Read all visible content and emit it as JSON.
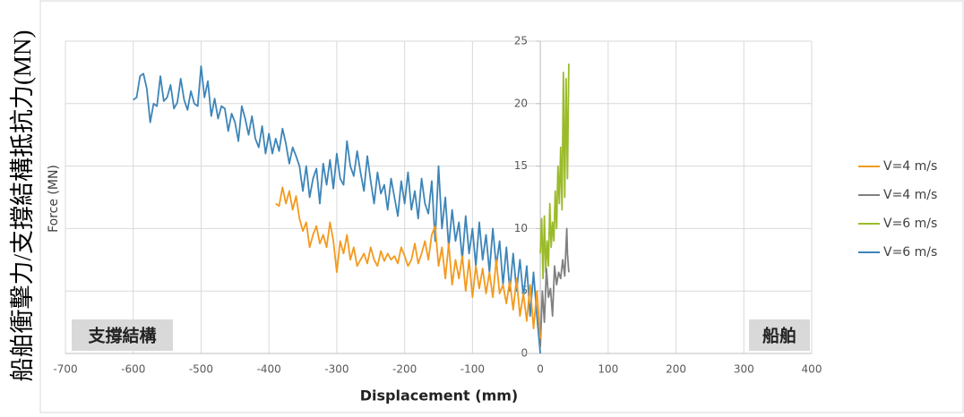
{
  "chart_data": {
    "type": "line",
    "title": "船舶衝擊力/支撐結構抵抗力(MN)",
    "y_label": "Force (MN)",
    "x_label": "Displacement (mm)",
    "region_labels": [
      "支撐結構",
      "船舶"
    ],
    "xlim": [
      -700,
      400
    ],
    "xticks": [
      -700,
      -600,
      -500,
      -400,
      -300,
      -200,
      -100,
      0,
      100,
      200,
      300,
      400
    ],
    "ylim": [
      0,
      25
    ],
    "yticks": [
      0,
      5,
      10,
      15,
      20,
      25
    ],
    "grid": true,
    "legend": "right",
    "series": [
      {
        "name": "V=4 m/s",
        "color": "#f39a1e",
        "x": [
          -390,
          -385,
          -380,
          -375,
          -370,
          -365,
          -360,
          -355,
          -350,
          -345,
          -340,
          -335,
          -330,
          -325,
          -320,
          -315,
          -310,
          -305,
          -300,
          -295,
          -290,
          -285,
          -280,
          -275,
          -270,
          -265,
          -260,
          -255,
          -250,
          -245,
          -240,
          -235,
          -230,
          -225,
          -220,
          -215,
          -210,
          -205,
          -200,
          -195,
          -190,
          -185,
          -180,
          -175,
          -170,
          -165,
          -160,
          -155,
          -150,
          -145,
          -140,
          -135,
          -130,
          -125,
          -120,
          -115,
          -110,
          -105,
          -100,
          -95,
          -90,
          -85,
          -80,
          -75,
          -70,
          -65,
          -60,
          -55,
          -50,
          -45,
          -40,
          -35,
          -30,
          -25,
          -20,
          -15,
          -10,
          -5,
          0
        ],
        "values": [
          12.0,
          11.8,
          13.3,
          12.0,
          13.0,
          11.5,
          12.6,
          10.8,
          9.8,
          10.5,
          8.5,
          9.5,
          10.2,
          8.8,
          9.5,
          8.5,
          10.5,
          9.0,
          6.5,
          9.0,
          8.0,
          9.5,
          7.5,
          8.5,
          7.0,
          7.5,
          8.0,
          7.2,
          8.5,
          7.5,
          7.0,
          8.2,
          7.4,
          8.0,
          7.5,
          7.8,
          7.2,
          8.5,
          7.8,
          7.0,
          7.5,
          8.8,
          7.2,
          8.0,
          9.0,
          7.5,
          9.5,
          10.2,
          7.0,
          8.5,
          6.0,
          8.8,
          5.5,
          7.5,
          6.0,
          7.8,
          5.0,
          7.5,
          4.5,
          7.0,
          5.2,
          6.8,
          4.8,
          6.5,
          4.5,
          7.5,
          4.8,
          5.5,
          4.0,
          5.8,
          3.5,
          6.0,
          3.0,
          4.8,
          2.6,
          5.5,
          2.0,
          5.0,
          1.2
        ]
      },
      {
        "name": "V=4 m/s",
        "color": "#808080",
        "x": [
          0,
          3,
          6,
          9,
          12,
          15,
          18,
          21,
          24,
          27,
          30,
          33,
          36,
          39,
          40,
          42
        ],
        "values": [
          0.5,
          5.0,
          2.5,
          6.8,
          4.5,
          5.2,
          3.0,
          7.0,
          5.5,
          6.5,
          6.0,
          7.5,
          6.2,
          10.0,
          8.0,
          6.5
        ]
      },
      {
        "name": "V=6 m/s",
        "color": "#9bbb2a",
        "x": [
          0,
          2,
          4,
          6,
          8,
          10,
          12,
          14,
          16,
          18,
          20,
          22,
          24,
          26,
          28,
          30,
          32,
          34,
          36,
          38,
          40,
          42
        ],
        "values": [
          8.0,
          10.8,
          6.0,
          11.0,
          6.5,
          9.0,
          7.0,
          12.0,
          8.5,
          10.5,
          9.0,
          13.0,
          10.0,
          15.0,
          12.0,
          16.5,
          11.5,
          22.5,
          12.5,
          22.0,
          14.0,
          23.2
        ]
      },
      {
        "name": "V=6 m/s",
        "color": "#3d85b8",
        "x": [
          -600,
          -595,
          -590,
          -585,
          -580,
          -575,
          -570,
          -565,
          -560,
          -555,
          -550,
          -545,
          -540,
          -535,
          -530,
          -525,
          -520,
          -515,
          -510,
          -505,
          -500,
          -495,
          -490,
          -485,
          -480,
          -475,
          -470,
          -465,
          -460,
          -455,
          -450,
          -445,
          -440,
          -435,
          -430,
          -425,
          -420,
          -415,
          -410,
          -405,
          -400,
          -395,
          -390,
          -385,
          -380,
          -375,
          -370,
          -365,
          -360,
          -355,
          -350,
          -345,
          -340,
          -335,
          -330,
          -325,
          -320,
          -315,
          -310,
          -305,
          -300,
          -295,
          -290,
          -285,
          -280,
          -275,
          -270,
          -265,
          -260,
          -255,
          -250,
          -245,
          -240,
          -235,
          -230,
          -225,
          -220,
          -215,
          -210,
          -205,
          -200,
          -195,
          -190,
          -185,
          -180,
          -175,
          -170,
          -165,
          -160,
          -155,
          -150,
          -145,
          -140,
          -135,
          -130,
          -125,
          -120,
          -115,
          -110,
          -105,
          -100,
          -95,
          -90,
          -85,
          -80,
          -75,
          -70,
          -65,
          -60,
          -55,
          -50,
          -45,
          -40,
          -35,
          -30,
          -25,
          -20,
          -15,
          -10,
          -5,
          0
        ],
        "values": [
          20.3,
          20.5,
          22.2,
          22.4,
          21.2,
          18.5,
          20.0,
          19.8,
          22.2,
          20.2,
          20.5,
          21.5,
          19.6,
          20.1,
          22.0,
          20.3,
          19.5,
          21.0,
          20.0,
          19.8,
          23.0,
          20.5,
          21.8,
          19.0,
          20.4,
          18.8,
          19.8,
          19.6,
          17.8,
          19.2,
          18.5,
          17.0,
          19.8,
          18.8,
          17.5,
          19.0,
          17.2,
          16.5,
          18.2,
          16.0,
          17.6,
          16.0,
          17.2,
          16.2,
          18.0,
          16.8,
          15.2,
          16.5,
          15.8,
          15.0,
          13.0,
          15.0,
          12.5,
          14.0,
          14.8,
          12.0,
          15.2,
          13.5,
          15.5,
          13.2,
          16.0,
          14.0,
          13.5,
          17.0,
          15.0,
          14.2,
          16.2,
          14.5,
          13.0,
          15.8,
          13.8,
          12.0,
          14.5,
          12.8,
          13.5,
          11.5,
          14.0,
          12.5,
          11.0,
          13.8,
          12.0,
          14.5,
          11.5,
          13.0,
          10.8,
          14.0,
          12.0,
          11.2,
          13.8,
          9.0,
          15.0,
          10.0,
          12.5,
          8.5,
          11.5,
          9.0,
          10.5,
          7.5,
          11.0,
          8.0,
          10.0,
          7.0,
          10.5,
          7.5,
          9.5,
          6.5,
          10.0,
          7.0,
          9.0,
          5.5,
          8.5,
          5.0,
          8.0,
          5.0,
          7.5,
          4.5,
          7.0,
          3.0,
          6.5,
          3.0,
          0
        ]
      }
    ]
  }
}
